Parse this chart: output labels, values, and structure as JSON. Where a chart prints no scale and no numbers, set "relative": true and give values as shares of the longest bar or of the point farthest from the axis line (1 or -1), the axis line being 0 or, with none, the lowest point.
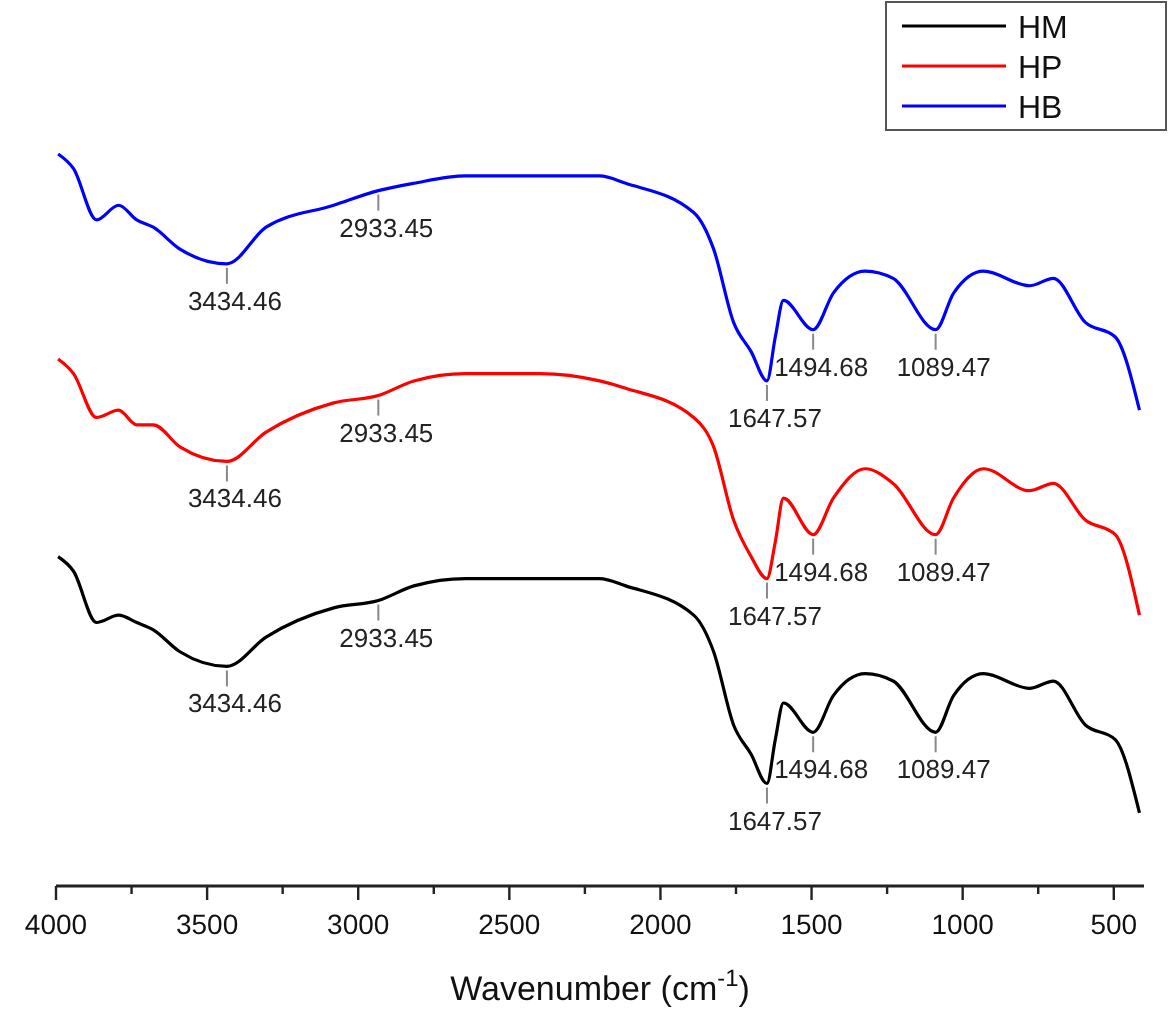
{
  "chart_data": {
    "type": "line",
    "relative": true,
    "xlabel": "Wavenumber (cm$^{-1}$)",
    "xlim": [
      4000,
      400
    ],
    "xticks": [
      4000,
      {
        "value": 3750,
        "label": null
      },
      3500,
      {
        "value": 3250,
        "label": null
      },
      3000,
      {
        "value": 2750,
        "label": null
      },
      2500,
      {
        "value": 2250,
        "label": null
      },
      2000,
      {
        "value": 1750,
        "label": null
      },
      1500,
      {
        "value": 1250,
        "label": null
      },
      1000,
      {
        "value": 750,
        "label": null
      },
      500
    ],
    "x": [
      3993,
      3942,
      3866,
      3793,
      3733,
      3678,
      3590,
      3434.46,
      3305,
      3081,
      2933.45,
      2816,
      2644,
      2400,
      2201,
      2115,
      1890,
      1824,
      1758,
      1700,
      1647.57,
      1620,
      1593,
      1494.68,
      1428,
      1322,
      1230,
      1089.47,
      1030,
      931,
      779,
      700,
      594,
      495,
      415
    ],
    "legend": "top right",
    "series": [
      {
        "name": "HM",
        "color": "#000000",
        "values": [
          0.45,
          0.43,
          0.36,
          0.37,
          0.36,
          0.35,
          0.32,
          0.3,
          0.34,
          0.38,
          0.39,
          0.41,
          0.42,
          0.42,
          0.42,
          0.41,
          0.37,
          0.32,
          0.22,
          0.18,
          0.14,
          0.2,
          0.25,
          0.21,
          0.26,
          0.29,
          0.28,
          0.21,
          0.26,
          0.29,
          0.27,
          0.28,
          0.22,
          0.2,
          0.1
        ]
      },
      {
        "name": "HP",
        "color": "#ff0000",
        "values": [
          0.72,
          0.7,
          0.64,
          0.65,
          0.63,
          0.63,
          0.6,
          0.58,
          0.62,
          0.66,
          0.67,
          0.69,
          0.7,
          0.7,
          0.69,
          0.68,
          0.64,
          0.6,
          0.5,
          0.45,
          0.42,
          0.47,
          0.53,
          0.48,
          0.53,
          0.57,
          0.55,
          0.48,
          0.53,
          0.57,
          0.54,
          0.55,
          0.5,
          0.48,
          0.37
        ]
      },
      {
        "name": "HB",
        "color": "#0000ff",
        "values": [
          1,
          0.98,
          0.91,
          0.93,
          0.91,
          0.9,
          0.87,
          0.85,
          0.9,
          0.93,
          0.95,
          0.96,
          0.97,
          0.97,
          0.97,
          0.96,
          0.92,
          0.87,
          0.77,
          0.73,
          0.69,
          0.75,
          0.8,
          0.76,
          0.81,
          0.84,
          0.83,
          0.76,
          0.81,
          0.84,
          0.82,
          0.83,
          0.77,
          0.75,
          0.65
        ]
      }
    ],
    "annotations": [
      {
        "text": "3434.46",
        "x": 3434.46,
        "y": 0.3
      },
      {
        "text": "2933.45",
        "x": 2933.45,
        "y": 0.39
      },
      {
        "text": "1647.57",
        "x": 1647.57,
        "y": 0.14
      },
      {
        "text": "1494.68",
        "x": 1494.68,
        "y": 0.21
      },
      {
        "text": "1089.47",
        "x": 1089.47,
        "y": 0.21
      },
      {
        "text": "3434.46",
        "x": 3434.46,
        "y": 0.58
      },
      {
        "text": "2933.45",
        "x": 2933.45,
        "y": 0.67
      },
      {
        "text": "1647.57",
        "x": 1647.57,
        "y": 0.42
      },
      {
        "text": "1494.68",
        "x": 1494.68,
        "y": 0.48
      },
      {
        "text": "1089.47",
        "x": 1089.47,
        "y": 0.48
      },
      {
        "text": "3434.46",
        "x": 3434.46,
        "y": 0.85
      },
      {
        "text": "2933.45",
        "x": 2933.45,
        "y": 0.95
      },
      {
        "text": "1647.57",
        "x": 1647.57,
        "y": 0.69
      },
      {
        "text": "1494.68",
        "x": 1494.68,
        "y": 0.76
      },
      {
        "text": "1089.47",
        "x": 1089.47,
        "y": 0.76
      }
    ]
  }
}
